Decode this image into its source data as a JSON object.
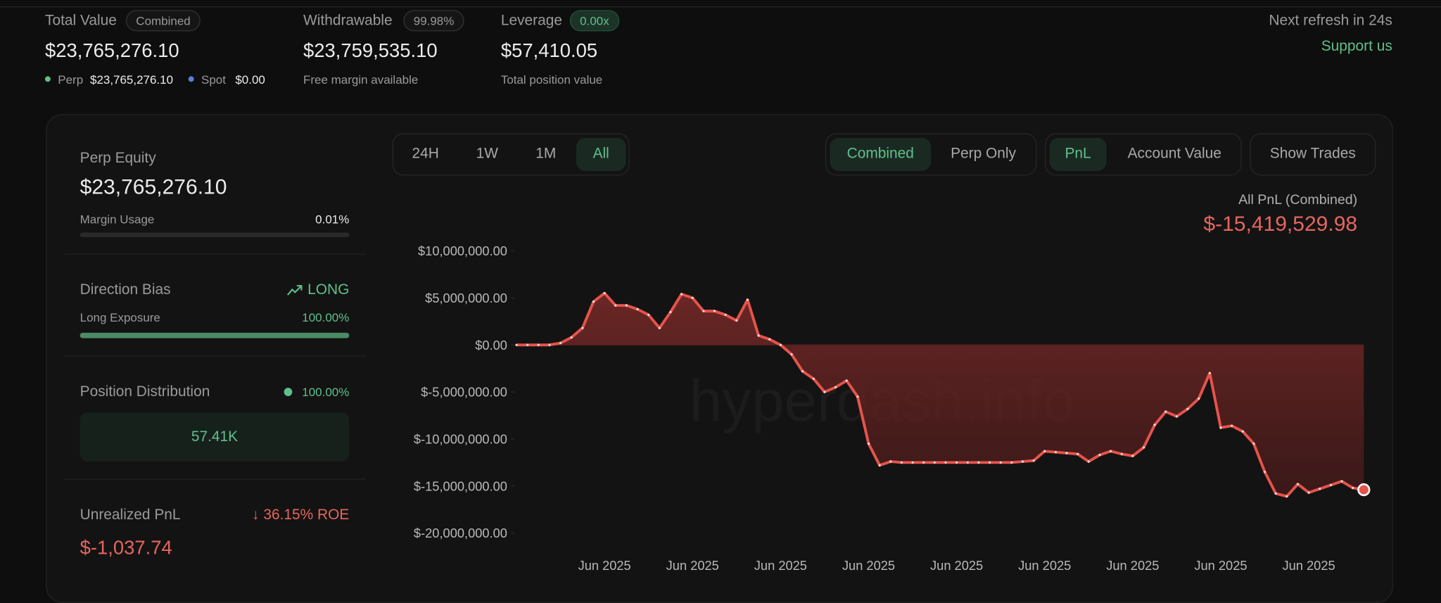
{
  "header": {
    "total_value": {
      "label": "Total Value",
      "badge": "Combined",
      "value": "$23,765,276.10",
      "perp_label": "Perp",
      "perp_value": "$23,765,276.10",
      "spot_label": "Spot",
      "spot_value": "$0.00"
    },
    "withdrawable": {
      "label": "Withdrawable",
      "badge": "99.98%",
      "value": "$23,759,535.10",
      "note": "Free margin available"
    },
    "leverage": {
      "label": "Leverage",
      "badge": "0.00x",
      "value": "$57,410.05",
      "note": "Total position value"
    },
    "refresh": "Next refresh in 24s",
    "support": "Support us"
  },
  "panel": {
    "perp_equity": {
      "label": "Perp Equity",
      "value": "$23,765,276.10"
    },
    "margin_usage": {
      "label": "Margin Usage",
      "value": "0.01%"
    },
    "direction_bias": {
      "label": "Direction Bias",
      "value": "LONG"
    },
    "long_exposure": {
      "label": "Long Exposure",
      "value": "100.00%"
    },
    "position_distribution": {
      "label": "Position Distribution",
      "value": "100.00%",
      "bar": "57.41K"
    },
    "unrealized_pnl": {
      "label": "Unrealized PnL",
      "roe": "36.15% ROE",
      "value": "$-1,037.74"
    }
  },
  "controls": {
    "ranges": [
      "24H",
      "1W",
      "1M",
      "All"
    ],
    "modes": [
      "Combined",
      "Perp Only"
    ],
    "metrics": [
      "PnL",
      "Account Value"
    ],
    "show_trades": "Show Trades"
  },
  "chart_data": {
    "type": "area",
    "title": "All PnL (Combined)",
    "subtitle": "$-15,419,529.98",
    "watermark": "hyperdash.info",
    "color": "#e5534b",
    "categories": [
      null,
      null,
      null,
      null,
      null,
      null,
      null,
      null,
      "Jun 2025",
      null,
      null,
      null,
      null,
      null,
      null,
      null,
      "Jun 2025",
      null,
      null,
      null,
      null,
      null,
      null,
      null,
      "Jun 2025",
      null,
      null,
      null,
      null,
      null,
      null,
      null,
      "Jun 2025",
      null,
      null,
      null,
      null,
      null,
      null,
      null,
      "Jun 2025",
      null,
      null,
      null,
      null,
      null,
      null,
      null,
      "Jun 2025",
      null,
      null,
      null,
      null,
      null,
      null,
      null,
      "Jun 2025",
      null,
      null,
      null,
      null,
      null,
      null,
      null,
      "Jun 2025",
      null,
      null,
      null,
      null,
      null,
      null,
      null,
      "Jun 2025",
      null,
      null,
      null,
      null,
      null
    ],
    "values": [
      0,
      0,
      0,
      0,
      200000,
      800000,
      1800000,
      4600000,
      5500000,
      4200000,
      4200000,
      3800000,
      3200000,
      1800000,
      3500000,
      5400000,
      5000000,
      3600000,
      3600000,
      3200000,
      2600000,
      4800000,
      1000000,
      600000,
      0,
      -1000000,
      -2800000,
      -3600000,
      -5000000,
      -4500000,
      -3800000,
      -5500000,
      -10500000,
      -12800000,
      -12400000,
      -12500000,
      -12500000,
      -12500000,
      -12500000,
      -12500000,
      -12500000,
      -12500000,
      -12500000,
      -12500000,
      -12500000,
      -12500000,
      -12400000,
      -12300000,
      -11300000,
      -11400000,
      -11500000,
      -11600000,
      -12400000,
      -11700000,
      -11300000,
      -11600000,
      -11800000,
      -10900000,
      -8500000,
      -7100000,
      -7600000,
      -6800000,
      -5700000,
      -3000000,
      -8800000,
      -8600000,
      -9200000,
      -10500000,
      -13500000,
      -15800000,
      -16100000,
      -14800000,
      -15700000,
      -15300000,
      -14900000,
      -14500000,
      -15200000,
      -15400000
    ],
    "ylim": [
      -20000000,
      10000000
    ],
    "yticks": [
      {
        "value": -20000000,
        "label": "$-20,000,000.00"
      },
      {
        "value": -15000000,
        "label": "$-15,000,000.00"
      },
      {
        "value": -10000000,
        "label": "$-10,000,000.00"
      },
      {
        "value": -5000000,
        "label": "$-5,000,000.00"
      },
      {
        "value": 0,
        "label": "$0.00"
      },
      {
        "value": 5000000,
        "label": "$5,000,000.00"
      },
      {
        "value": 10000000,
        "label": "$10,000,000.00"
      }
    ]
  }
}
